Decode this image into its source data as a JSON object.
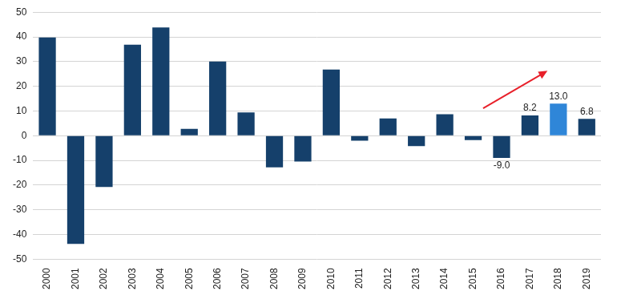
{
  "chart_data": {
    "type": "bar",
    "categories": [
      "2000",
      "2001",
      "2002",
      "2003",
      "2004",
      "2005",
      "2006",
      "2007",
      "2008",
      "2009",
      "2010",
      "2011",
      "2012",
      "2013",
      "2014",
      "2015",
      "2016",
      "2017",
      "2018",
      "2019"
    ],
    "values": [
      39.8,
      -43.8,
      -20.8,
      36.8,
      43.8,
      2.8,
      30.0,
      9.4,
      -12.8,
      -10.5,
      26.8,
      -2.0,
      7.0,
      -4.2,
      8.7,
      -1.8,
      -9.0,
      8.2,
      13.0,
      6.8
    ],
    "value_labels": [
      null,
      null,
      null,
      null,
      null,
      null,
      null,
      null,
      null,
      null,
      null,
      null,
      null,
      null,
      null,
      null,
      "-9.0",
      "8.2",
      "13.0",
      "6.8"
    ],
    "data_labels": true,
    "colors": [
      "#15406b",
      "#15406b",
      "#15406b",
      "#15406b",
      "#15406b",
      "#15406b",
      "#15406b",
      "#15406b",
      "#15406b",
      "#15406b",
      "#15406b",
      "#15406b",
      "#15406b",
      "#15406b",
      "#15406b",
      "#15406b",
      "#15406b",
      "#15406b",
      "#2f86d8",
      "#15406b"
    ],
    "ylim": [
      -50,
      50
    ],
    "yticks": [
      -50,
      -40,
      -30,
      -20,
      -10,
      0,
      10,
      20,
      30,
      40,
      50
    ],
    "grid": true
  }
}
